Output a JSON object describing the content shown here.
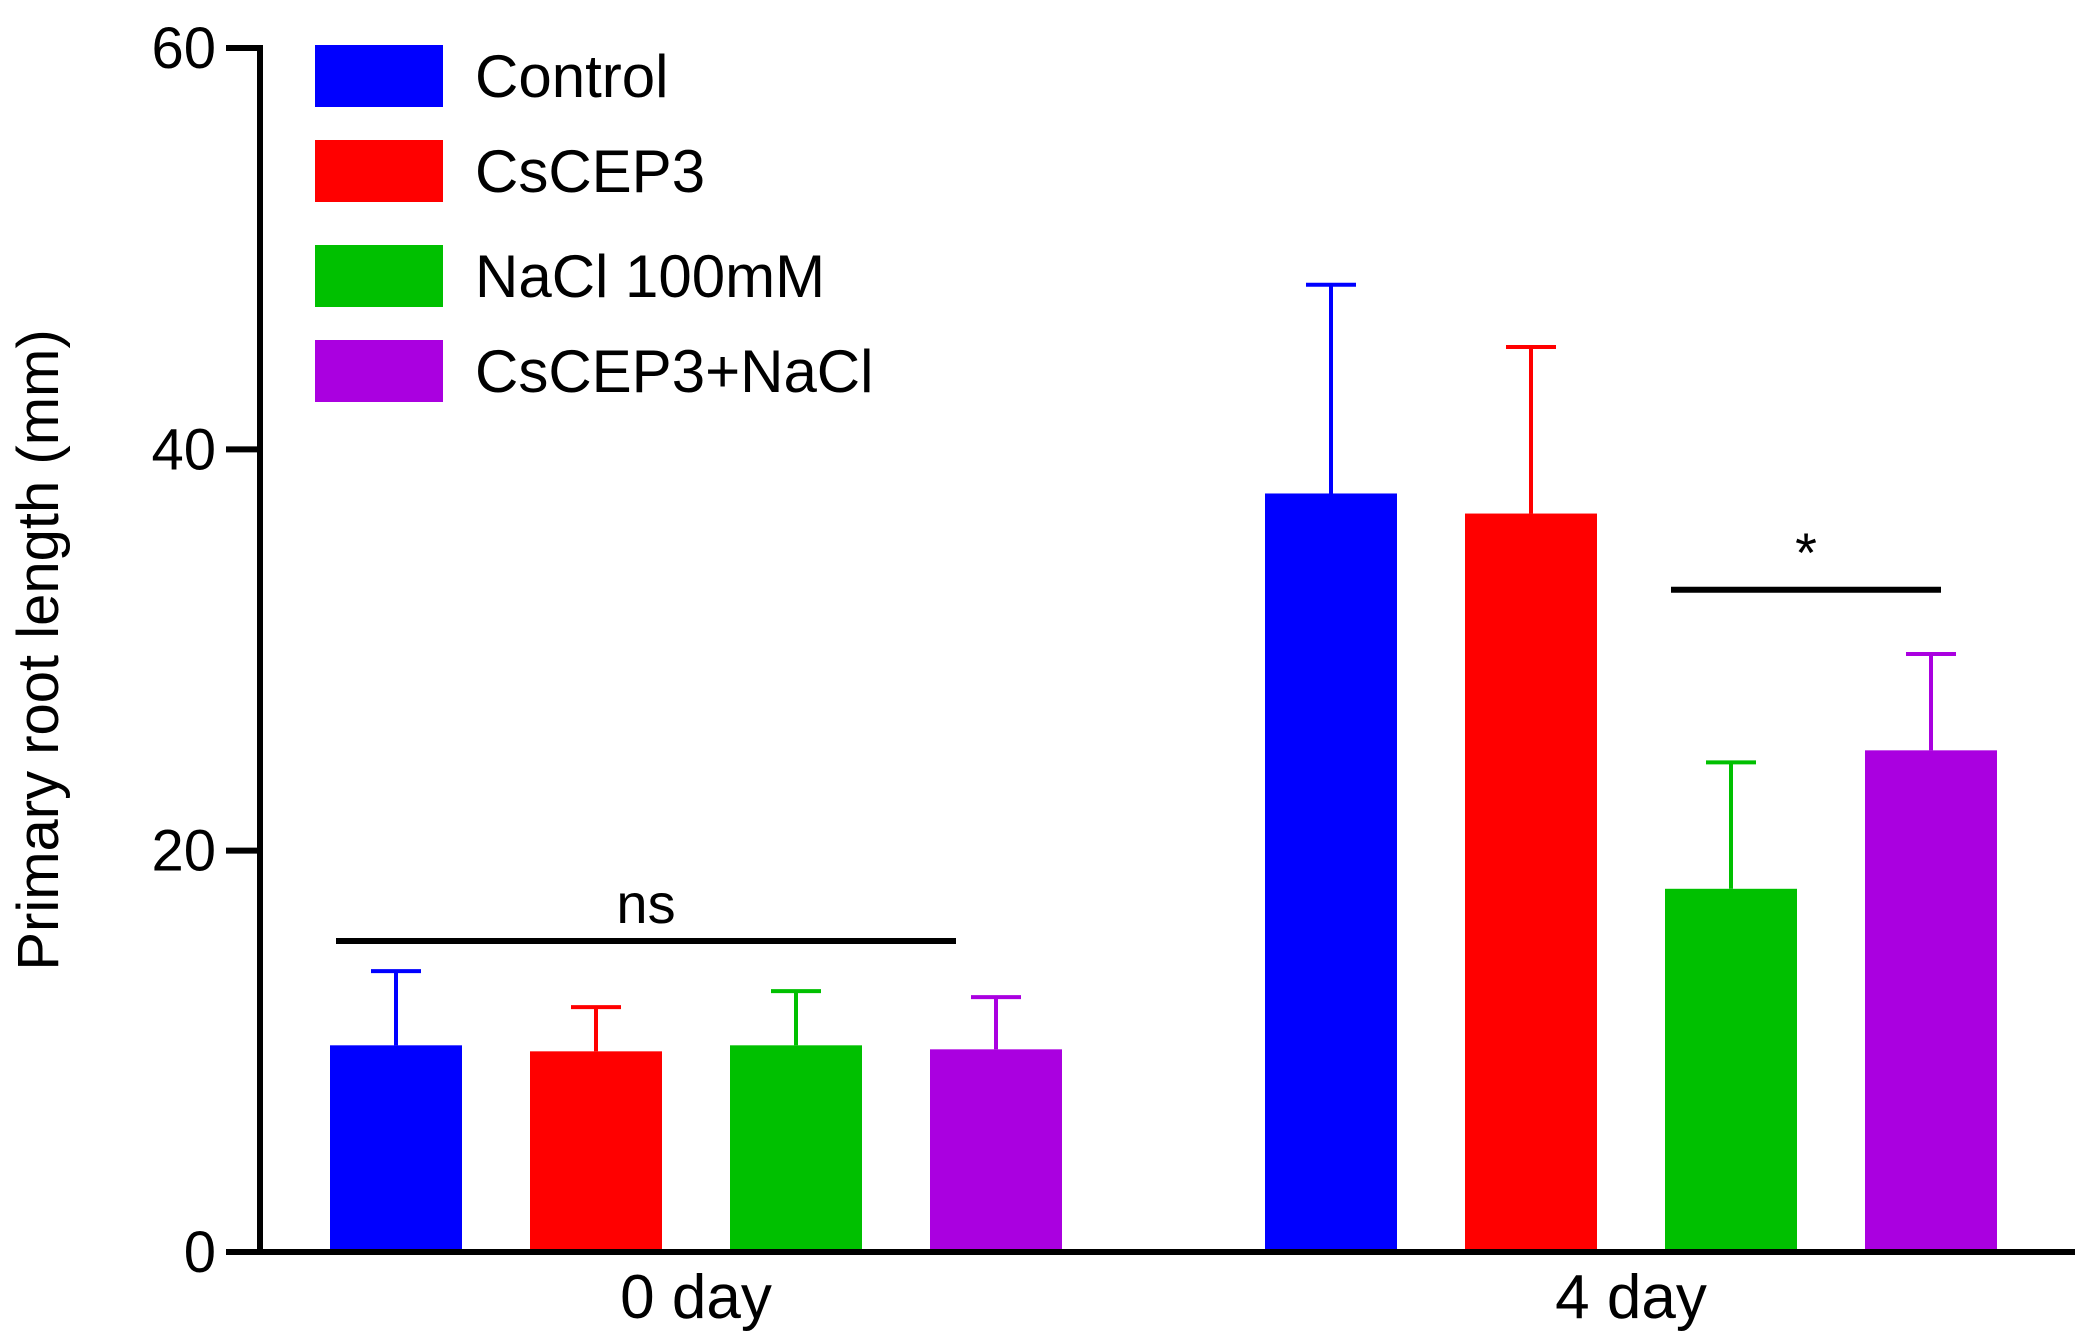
{
  "chart_data": {
    "type": "bar",
    "title": "",
    "xlabel": "",
    "ylabel": "Primary root length (mm)",
    "ylim": [
      0,
      60
    ],
    "yticks": [
      0,
      20,
      40,
      60
    ],
    "grid": false,
    "legend_position": "top-left",
    "categories": [
      "0 day",
      "4 day"
    ],
    "series": [
      {
        "name": "Control",
        "color": "#0000ff",
        "values": [
          10.3,
          37.8
        ],
        "errors": [
          3.7,
          10.4
        ]
      },
      {
        "name": "CsCEP3",
        "color": "#ff0000",
        "values": [
          10.0,
          36.8
        ],
        "errors": [
          2.2,
          8.3
        ]
      },
      {
        "name": "NaCl 100mM",
        "color": "#00c000",
        "values": [
          10.3,
          18.1
        ],
        "errors": [
          2.7,
          6.3
        ]
      },
      {
        "name": "CsCEP3+NaCl",
        "color": "#aa00e0",
        "values": [
          10.1,
          25.0
        ],
        "errors": [
          2.6,
          4.8
        ]
      }
    ],
    "annotations": [
      {
        "text": "ns",
        "category": "0 day",
        "from_series": 0,
        "to_series": 3,
        "y": 15.5
      },
      {
        "text": "*",
        "category": "4 day",
        "from_series": 2,
        "to_series": 3,
        "y": 33
      }
    ]
  }
}
